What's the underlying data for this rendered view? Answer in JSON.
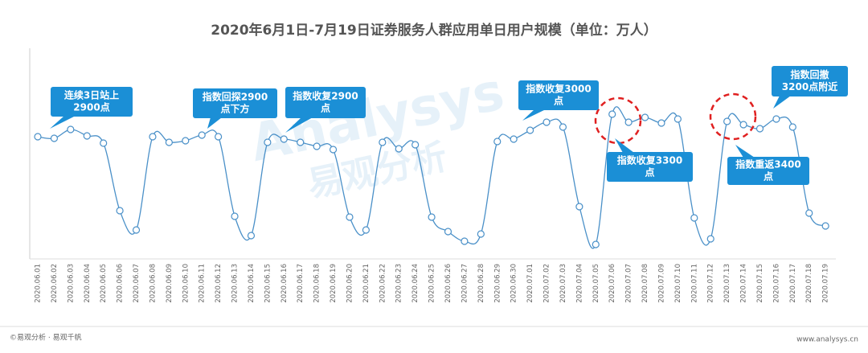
{
  "chart_data": {
    "type": "line",
    "title": "2020年6月1日-7月19日证券服务人群应用单日用户规模（单位：万人）",
    "categories": [
      "2020.06.01",
      "2020.06.02",
      "2020.06.03",
      "2020.06.04",
      "2020.06.05",
      "2020.06.06",
      "2020.06.07",
      "2020.06.08",
      "2020.06.09",
      "2020.06.10",
      "2020.06.11",
      "2020.06.12",
      "2020.06.13",
      "2020.06.14",
      "2020.06.15",
      "2020.06.16",
      "2020.06.17",
      "2020.06.18",
      "2020.06.19",
      "2020.06.20",
      "2020.06.21",
      "2020.06.22",
      "2020.06.23",
      "2020.06.24",
      "2020.06.25",
      "2020.06.26",
      "2020.06.27",
      "2020.06.28",
      "2020.06.29",
      "2020.06.30",
      "2020.07.01",
      "2020.07.02",
      "2020.07.03",
      "2020.07.04",
      "2020.07.05",
      "2020.07.06",
      "2020.07.07",
      "2020.07.08",
      "2020.07.09",
      "2020.07.10",
      "2020.07.11",
      "2020.07.12",
      "2020.07.13",
      "2020.07.14",
      "2020.07.15",
      "2020.07.16",
      "2020.07.17",
      "2020.07.18",
      "2020.07.19"
    ],
    "values": [
      150,
      148,
      159,
      151,
      142,
      58,
      34,
      150,
      143,
      145,
      152,
      150,
      51,
      27,
      143,
      147,
      143,
      138,
      134,
      50,
      34,
      143,
      135,
      140,
      50,
      32,
      20,
      29,
      144,
      147,
      158,
      168,
      162,
      63,
      16,
      178,
      168,
      174,
      167,
      172,
      49,
      23,
      169,
      165,
      160,
      172,
      162,
      55,
      39
    ],
    "color": "#4a90c8",
    "ylim": [
      0,
      300
    ],
    "annotations": [
      {
        "lines": [
          "连续3日站上",
          "2900点"
        ]
      },
      {
        "lines": [
          "指数回探2900",
          "点下方"
        ]
      },
      {
        "lines": [
          "指数收复2900",
          "点"
        ]
      },
      {
        "lines": [
          "指数收复3000",
          "点"
        ]
      },
      {
        "lines": [
          "指数收复3300",
          "点"
        ]
      },
      {
        "lines": [
          "指数重返3400",
          "点"
        ]
      },
      {
        "lines": [
          "指数回撤",
          "3200点附近"
        ]
      }
    ],
    "watermark": [
      "Analysys",
      "易观分析"
    ],
    "footer_left": "©易观分析 · 易观千帆",
    "footer_right": "www.analysys.cn"
  }
}
